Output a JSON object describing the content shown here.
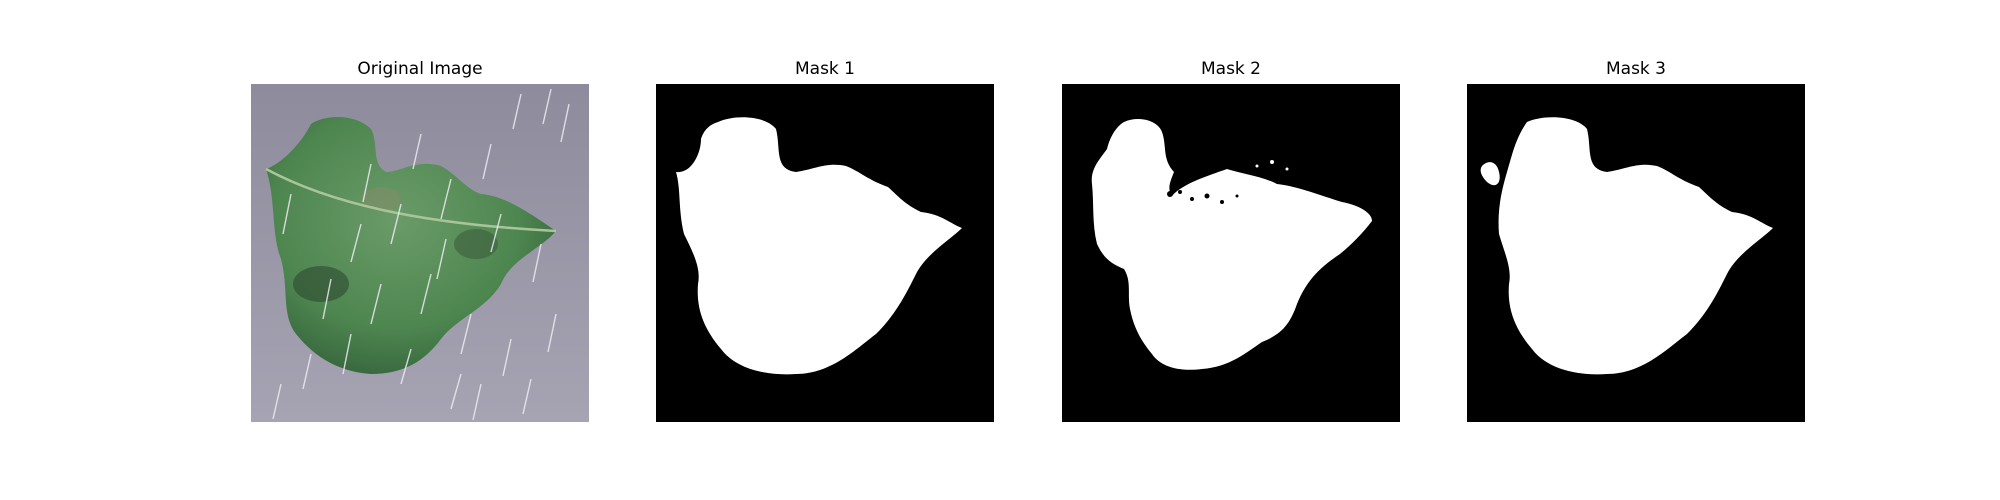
{
  "panels": [
    {
      "id": "original",
      "title": "Original Image",
      "icon": "leaf-photo-icon"
    },
    {
      "id": "mask1",
      "title": "Mask 1",
      "icon": "mask-icon"
    },
    {
      "id": "mask2",
      "title": "Mask 2",
      "icon": "mask-icon"
    },
    {
      "id": "mask3",
      "title": "Mask 3",
      "icon": "mask-icon"
    }
  ],
  "colors": {
    "background_photo": "#9a98a8",
    "leaf": "#4f8a52",
    "leaf_dark": "#345a3a",
    "rain": "#e8e8ee",
    "mask_fg": "#ffffff",
    "mask_bg": "#000000"
  }
}
